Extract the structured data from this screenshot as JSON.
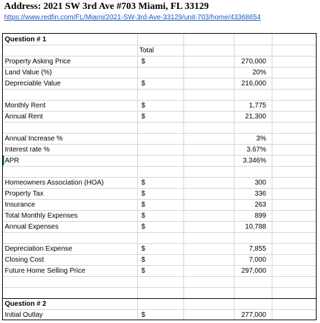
{
  "address": "Address: 2021 SW 3rd Ave #703 Miami, FL 33129",
  "url": "https://www.redfin.com/FL/Miami/2021-SW-3rd-Ave-33129/unit-703/home/43368654",
  "q1": "Question # 1",
  "total_header": "Total",
  "rows": [
    {
      "label": "Property Asking Price",
      "dollar": "$",
      "value": "270,000"
    },
    {
      "label": "Land Value (%)",
      "dollar": "",
      "value": "20%"
    },
    {
      "label": "Depreciable Value",
      "dollar": "$",
      "value": "216,000"
    },
    {
      "label": "Monthly Rent",
      "dollar": "$",
      "value": "1,775"
    },
    {
      "label": "Annual Rent",
      "dollar": "$",
      "value": "21,300"
    },
    {
      "label": "Annual Increase %",
      "dollar": "",
      "value": "3%"
    },
    {
      "label": "Interest rate %",
      "dollar": "",
      "value": "3.67%"
    },
    {
      "label": "APR",
      "dollar": "",
      "value": "3.346%"
    },
    {
      "label": "Homeowners Association (HOA)",
      "dollar": "$",
      "value": "300"
    },
    {
      "label": "Property Tax",
      "dollar": "$",
      "value": "336"
    },
    {
      "label": "Insurance",
      "dollar": "$",
      "value": "263"
    },
    {
      "label": "Total Monthly Expenses",
      "dollar": "$",
      "value": "899"
    },
    {
      "label": "Annual Expenses",
      "dollar": "$",
      "value": "10,788"
    },
    {
      "label": "Depreciation Expense",
      "dollar": "$",
      "value": "7,855"
    },
    {
      "label": "Closing Cost",
      "dollar": "$",
      "value": "7,000"
    },
    {
      "label": "Future Home Selling Price",
      "dollar": "$",
      "value": "297,000"
    }
  ],
  "q2": "Question # 2",
  "last_row": {
    "label": "Initial Outlay",
    "dollar": "$",
    "value": "277,000"
  }
}
